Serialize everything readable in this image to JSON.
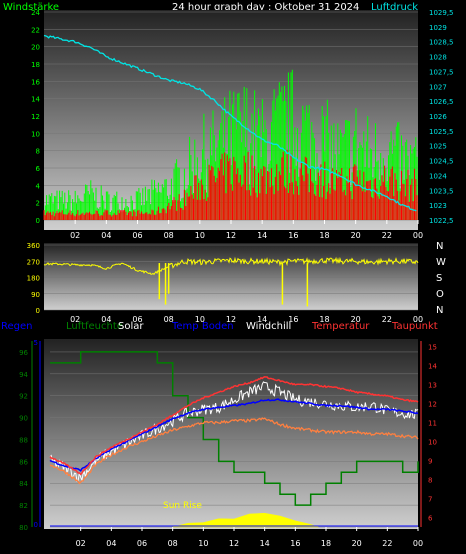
{
  "page": {
    "title": "24 hour graph day : Oktober 31 2024"
  },
  "colors": {
    "bg": "#000000",
    "wind": "#00ff00",
    "gust": "#ff0000",
    "pressure": "#00e5e5",
    "winddir": "#ffff00",
    "humidity": "#008000",
    "solar": "#ffff00",
    "soiltemp": "#0000ff",
    "windchill": "#ffffff",
    "temperature": "#ff3333",
    "dewpoint": "#ff8040"
  },
  "chart_data": [
    {
      "id": "wind",
      "type": "line",
      "title": "24 hour graph day : Oktober 31 2024",
      "left_axis_label": "Windstärke",
      "right_axis_label": "Luftdruck",
      "x_ticks": [
        "02",
        "04",
        "06",
        "08",
        "10",
        "12",
        "14",
        "16",
        "18",
        "20",
        "22",
        "00"
      ],
      "y_left_ticks": [
        "0",
        "2",
        "4",
        "6",
        "8",
        "10",
        "12",
        "14",
        "16",
        "18",
        "20",
        "22",
        "24"
      ],
      "y_left_range": [
        0,
        24
      ],
      "y_right_ticks": [
        "1022,5",
        "1023",
        "1023,5",
        "1024",
        "1024,5",
        "1025",
        "1025,5",
        "1026",
        "1026,5",
        "1027",
        "1027,5",
        "1028",
        "1028,5",
        "1029",
        "1029,5"
      ],
      "y_right_range": [
        1022.5,
        1029.5
      ],
      "pressure_series": [
        [
          0,
          1028.7
        ],
        [
          1,
          1028.6
        ],
        [
          2,
          1028.5
        ],
        [
          3,
          1028.3
        ],
        [
          4,
          1028.0
        ],
        [
          5,
          1027.8
        ],
        [
          6,
          1027.6
        ],
        [
          7,
          1027.4
        ],
        [
          8,
          1027.2
        ],
        [
          9,
          1027.1
        ],
        [
          10,
          1026.9
        ],
        [
          11,
          1026.5
        ],
        [
          12,
          1026.0
        ],
        [
          13,
          1025.6
        ],
        [
          14,
          1025.2
        ],
        [
          15,
          1025.0
        ],
        [
          16,
          1024.6
        ],
        [
          17,
          1024.3
        ],
        [
          18,
          1024.2
        ],
        [
          19,
          1024.0
        ],
        [
          20,
          1023.7
        ],
        [
          21,
          1023.5
        ],
        [
          22,
          1023.3
        ],
        [
          23,
          1023.0
        ],
        [
          24,
          1022.8
        ]
      ],
      "wind_envelope": [
        [
          0,
          3
        ],
        [
          1,
          3
        ],
        [
          2,
          3
        ],
        [
          3,
          4
        ],
        [
          4,
          3
        ],
        [
          5,
          3
        ],
        [
          6,
          3
        ],
        [
          7,
          4
        ],
        [
          8,
          5
        ],
        [
          9,
          7
        ],
        [
          10,
          10
        ],
        [
          11,
          11
        ],
        [
          12,
          13
        ],
        [
          13,
          14
        ],
        [
          14,
          12
        ],
        [
          15,
          14
        ],
        [
          16,
          15
        ],
        [
          17,
          13
        ],
        [
          18,
          12
        ],
        [
          19,
          10
        ],
        [
          20,
          12
        ],
        [
          21,
          10
        ],
        [
          22,
          11
        ],
        [
          23,
          9
        ],
        [
          24,
          9
        ]
      ],
      "gust_envelope": [
        [
          0,
          1
        ],
        [
          1,
          1
        ],
        [
          2,
          1
        ],
        [
          3,
          1
        ],
        [
          4,
          1
        ],
        [
          5,
          1
        ],
        [
          6,
          1
        ],
        [
          7,
          1
        ],
        [
          8,
          2
        ],
        [
          9,
          3
        ],
        [
          10,
          5
        ],
        [
          11,
          6
        ],
        [
          12,
          7
        ],
        [
          13,
          7
        ],
        [
          14,
          6
        ],
        [
          15,
          7
        ],
        [
          16,
          7
        ],
        [
          17,
          6
        ],
        [
          18,
          6
        ],
        [
          19,
          5
        ],
        [
          20,
          6
        ],
        [
          21,
          5
        ],
        [
          22,
          6
        ],
        [
          23,
          5
        ],
        [
          24,
          5
        ]
      ]
    },
    {
      "id": "winddir",
      "type": "line",
      "y_ticks": [
        "360",
        "270",
        "180",
        "90",
        "0"
      ],
      "y_range": [
        0,
        360
      ],
      "compass_labels": [
        "N",
        "W",
        "S",
        "O",
        "N"
      ],
      "x_ticks": [
        "02",
        "04",
        "06",
        "08",
        "10",
        "12",
        "14",
        "16",
        "18",
        "20",
        "22",
        "00"
      ],
      "series": [
        [
          0,
          255
        ],
        [
          1,
          255
        ],
        [
          2,
          250
        ],
        [
          3,
          250
        ],
        [
          4,
          230
        ],
        [
          5,
          260
        ],
        [
          6,
          220
        ],
        [
          7,
          200
        ],
        [
          8,
          240
        ],
        [
          9,
          270
        ],
        [
          10,
          265
        ],
        [
          11,
          270
        ],
        [
          12,
          275
        ],
        [
          13,
          270
        ],
        [
          14,
          270
        ],
        [
          15,
          265
        ],
        [
          16,
          270
        ],
        [
          17,
          270
        ],
        [
          18,
          275
        ],
        [
          19,
          270
        ],
        [
          20,
          270
        ],
        [
          21,
          265
        ],
        [
          22,
          270
        ],
        [
          23,
          270
        ],
        [
          24,
          265
        ]
      ],
      "spikes": [
        [
          7.4,
          60
        ],
        [
          7.8,
          30
        ],
        [
          8.0,
          90
        ],
        [
          15.3,
          30
        ],
        [
          16.9,
          20
        ]
      ]
    },
    {
      "id": "temperature",
      "type": "line",
      "legend": [
        "Regen",
        "Luftfeuchte",
        "Solar",
        "Temp Boden",
        "Windchill",
        "Temperatur",
        "Taupunkt"
      ],
      "annotation": "Sun Rise",
      "x_ticks": [
        "02",
        "04",
        "06",
        "08",
        "10",
        "12",
        "14",
        "16",
        "18",
        "20",
        "22",
        "00"
      ],
      "y_left_ticks": [
        "80",
        "82",
        "84",
        "86",
        "88",
        "90",
        "92",
        "94",
        "96"
      ],
      "y_left_range": [
        80,
        97
      ],
      "y_right_ticks": [
        "6",
        "7",
        "8",
        "9",
        "10",
        "11",
        "12",
        "13",
        "14",
        "15"
      ],
      "y_right_range": [
        5.5,
        15.3
      ],
      "humidity": [
        [
          0,
          95
        ],
        [
          1,
          95
        ],
        [
          2,
          96
        ],
        [
          3,
          96
        ],
        [
          4,
          96
        ],
        [
          5,
          96
        ],
        [
          6,
          96
        ],
        [
          7,
          95
        ],
        [
          8,
          92
        ],
        [
          9,
          90
        ],
        [
          10,
          88
        ],
        [
          11,
          86
        ],
        [
          12,
          85
        ],
        [
          13,
          85
        ],
        [
          14,
          84
        ],
        [
          15,
          83
        ],
        [
          16,
          82
        ],
        [
          17,
          83
        ],
        [
          18,
          84
        ],
        [
          19,
          85
        ],
        [
          20,
          86
        ],
        [
          21,
          86
        ],
        [
          22,
          86
        ],
        [
          23,
          85
        ],
        [
          24,
          86
        ]
      ],
      "temp": [
        [
          0,
          9.2
        ],
        [
          1,
          8.8
        ],
        [
          2,
          8.3
        ],
        [
          3,
          9.2
        ],
        [
          4,
          9.7
        ],
        [
          5,
          10.1
        ],
        [
          6,
          10.5
        ],
        [
          7,
          10.9
        ],
        [
          8,
          11.4
        ],
        [
          9,
          11.9
        ],
        [
          10,
          12.3
        ],
        [
          11,
          12.6
        ],
        [
          12,
          12.9
        ],
        [
          13,
          13.1
        ],
        [
          14,
          13.4
        ],
        [
          15,
          13.2
        ],
        [
          16,
          13.0
        ],
        [
          17,
          13.0
        ],
        [
          18,
          12.9
        ],
        [
          19,
          12.8
        ],
        [
          20,
          12.6
        ],
        [
          21,
          12.5
        ],
        [
          22,
          12.4
        ],
        [
          23,
          12.2
        ],
        [
          24,
          12.1
        ]
      ],
      "windchill": [
        [
          0,
          9.0
        ],
        [
          1,
          8.6
        ],
        [
          2,
          8.1
        ],
        [
          3,
          9.0
        ],
        [
          4,
          9.5
        ],
        [
          5,
          9.9
        ],
        [
          6,
          10.3
        ],
        [
          7,
          10.7
        ],
        [
          8,
          11.1
        ],
        [
          9,
          11.5
        ],
        [
          10,
          11.7
        ],
        [
          11,
          11.8
        ],
        [
          12,
          12.2
        ],
        [
          13,
          12.6
        ],
        [
          14,
          12.9
        ],
        [
          15,
          12.6
        ],
        [
          16,
          12.2
        ],
        [
          17,
          12.1
        ],
        [
          18,
          12.0
        ],
        [
          19,
          11.9
        ],
        [
          20,
          11.8
        ],
        [
          21,
          11.9
        ],
        [
          22,
          11.6
        ],
        [
          23,
          11.5
        ],
        [
          24,
          11.4
        ]
      ],
      "dewpoint": [
        [
          0,
          8.8
        ],
        [
          1,
          8.4
        ],
        [
          2,
          7.8
        ],
        [
          3,
          8.8
        ],
        [
          4,
          9.3
        ],
        [
          5,
          9.7
        ],
        [
          6,
          10.0
        ],
        [
          7,
          10.3
        ],
        [
          8,
          10.6
        ],
        [
          9,
          10.8
        ],
        [
          10,
          11.0
        ],
        [
          11,
          11.0
        ],
        [
          12,
          11.1
        ],
        [
          13,
          11.1
        ],
        [
          14,
          11.2
        ],
        [
          15,
          10.9
        ],
        [
          16,
          10.7
        ],
        [
          17,
          10.6
        ],
        [
          18,
          10.5
        ],
        [
          19,
          10.5
        ],
        [
          20,
          10.5
        ],
        [
          21,
          10.4
        ],
        [
          22,
          10.4
        ],
        [
          23,
          10.3
        ],
        [
          24,
          10.2
        ]
      ],
      "soiltemp": [
        [
          0,
          9.0
        ],
        [
          1,
          8.7
        ],
        [
          2,
          8.5
        ],
        [
          3,
          9.1
        ],
        [
          4,
          9.6
        ],
        [
          5,
          10.0
        ],
        [
          6,
          10.4
        ],
        [
          7,
          10.8
        ],
        [
          8,
          11.2
        ],
        [
          9,
          11.5
        ],
        [
          10,
          11.7
        ],
        [
          11,
          11.8
        ],
        [
          12,
          11.9
        ],
        [
          13,
          12.0
        ],
        [
          14,
          12.2
        ],
        [
          15,
          12.2
        ],
        [
          16,
          12.1
        ],
        [
          17,
          12.0
        ],
        [
          18,
          11.9
        ],
        [
          19,
          11.9
        ],
        [
          20,
          11.8
        ],
        [
          21,
          11.7
        ],
        [
          22,
          11.7
        ],
        [
          23,
          11.6
        ],
        [
          24,
          11.5
        ]
      ],
      "solar": [
        [
          8,
          0
        ],
        [
          9,
          0.5
        ],
        [
          10,
          1
        ],
        [
          11,
          2
        ],
        [
          12,
          3
        ],
        [
          13,
          4
        ],
        [
          14,
          4.5
        ],
        [
          15,
          3.5
        ],
        [
          16,
          2
        ],
        [
          17,
          0.5
        ],
        [
          17.5,
          0
        ]
      ],
      "rain": [
        [
          0,
          0
        ],
        [
          24,
          0
        ]
      ]
    }
  ]
}
